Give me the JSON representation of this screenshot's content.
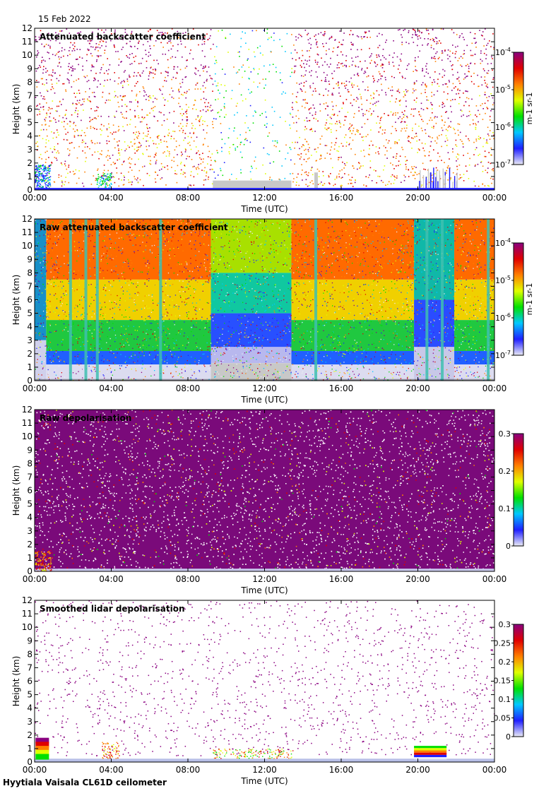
{
  "date": "15 Feb 2022",
  "footer": "Hyytiala Vaisala CL61D ceilometer",
  "colors": {
    "scale": [
      "#ebebf5",
      "#1f1fff",
      "#00c8ff",
      "#00e000",
      "#e0ff00",
      "#ff8000",
      "#e00000",
      "#8a0080"
    ],
    "grey": "#c8c8c8"
  },
  "chart_data": [
    {
      "type": "heatmap",
      "title": "Attenuated backscatter coefficient",
      "xlabel": "Time (UTC)",
      "ylabel": "Height (km)",
      "xticks": [
        "00:00",
        "04:00",
        "08:00",
        "12:00",
        "16:00",
        "20:00",
        "00:00"
      ],
      "yticks": [
        "0",
        "1",
        "2",
        "3",
        "4",
        "5",
        "6",
        "7",
        "8",
        "9",
        "10",
        "11",
        "12"
      ],
      "ylim": [
        0,
        12
      ],
      "colorbar": {
        "scale": "log",
        "unit": "m-1 sr-1",
        "ticks": [
          {
            "base": "10",
            "exp": "-4"
          },
          {
            "base": "10",
            "exp": "-5"
          },
          {
            "base": "10",
            "exp": "-6"
          },
          {
            "base": "10",
            "exp": "-7"
          }
        ]
      }
    },
    {
      "type": "heatmap",
      "title": "Raw attenuated backscatter coefficient",
      "xlabel": "Time (UTC)",
      "ylabel": "Height (km)",
      "xticks": [
        "00:00",
        "04:00",
        "08:00",
        "12:00",
        "16:00",
        "20:00",
        "00:00"
      ],
      "yticks": [
        "0",
        "1",
        "2",
        "3",
        "4",
        "5",
        "6",
        "7",
        "8",
        "9",
        "10",
        "11",
        "12"
      ],
      "ylim": [
        0,
        12
      ],
      "colorbar": {
        "scale": "log",
        "unit": "m-1 sr-1",
        "ticks": [
          {
            "base": "10",
            "exp": "-4"
          },
          {
            "base": "10",
            "exp": "-5"
          },
          {
            "base": "10",
            "exp": "-6"
          },
          {
            "base": "10",
            "exp": "-7"
          }
        ]
      }
    },
    {
      "type": "heatmap",
      "title": "Raw depolarisation",
      "xlabel": "Time (UTC)",
      "ylabel": "Height (km)",
      "xticks": [
        "00:00",
        "04:00",
        "08:00",
        "12:00",
        "16:00",
        "20:00",
        "00:00"
      ],
      "yticks": [
        "0",
        "1",
        "2",
        "3",
        "4",
        "5",
        "6",
        "7",
        "8",
        "9",
        "10",
        "11",
        "12"
      ],
      "ylim": [
        0,
        12
      ],
      "colorbar": {
        "scale": "linear",
        "unit": "",
        "ticks": [
          "0.3",
          "0.2",
          "0.1",
          "0"
        ]
      }
    },
    {
      "type": "heatmap",
      "title": "Smoothed lidar depolarisation",
      "xlabel": "Time (UTC)",
      "ylabel": "Height (km)",
      "xticks": [
        "00:00",
        "04:00",
        "08:00",
        "12:00",
        "16:00",
        "20:00",
        "00:00"
      ],
      "yticks": [
        "0",
        "1",
        "2",
        "3",
        "4",
        "5",
        "6",
        "7",
        "8",
        "9",
        "10",
        "11",
        "12"
      ],
      "ylim": [
        0,
        12
      ],
      "colorbar": {
        "scale": "linear",
        "unit": "",
        "ticks": [
          "0.3",
          "0.25",
          "0.2",
          "0.15",
          "0.1",
          "0.05",
          "0"
        ]
      }
    }
  ]
}
